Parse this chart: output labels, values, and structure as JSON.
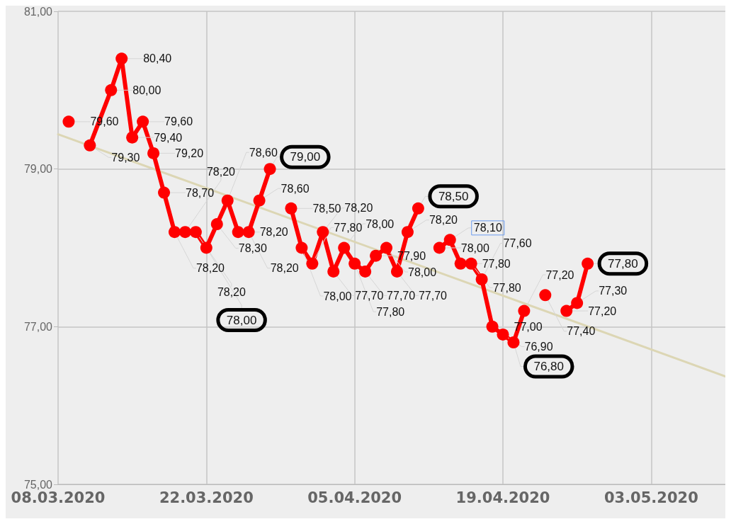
{
  "chart_data": {
    "type": "line",
    "x": [
      "2020-03-09",
      "2020-03-10",
      "2020-03-11",
      "2020-03-13",
      "2020-03-14",
      "2020-03-15",
      "2020-03-16",
      "2020-03-17",
      "2020-03-18",
      "2020-03-19",
      "2020-03-20",
      "2020-03-21",
      "2020-03-22",
      "2020-03-23",
      "2020-03-24",
      "2020-03-25",
      "2020-03-26",
      "2020-03-27",
      "2020-03-28",
      "2020-03-29",
      "2020-03-30",
      "2020-03-31",
      "2020-04-01",
      "2020-04-02",
      "2020-04-03",
      "2020-04-04",
      "2020-04-05",
      "2020-04-06",
      "2020-04-07",
      "2020-04-08",
      "2020-04-09",
      "2020-04-10",
      "2020-04-11",
      "2020-04-12",
      "2020-04-13",
      "2020-04-14",
      "2020-04-15",
      "2020-04-16",
      "2020-04-17",
      "2020-04-18",
      "2020-04-19",
      "2020-04-20",
      "2020-04-21",
      "2020-04-22",
      "2020-04-23",
      "2020-04-24",
      "2020-04-25",
      "2020-04-26",
      "2020-04-27"
    ],
    "series": [
      {
        "color": "#ff0000",
        "values": [
          79.6,
          null,
          79.3,
          80.0,
          80.4,
          79.4,
          79.6,
          79.2,
          78.7,
          78.2,
          78.2,
          78.2,
          78.0,
          78.3,
          78.6,
          78.2,
          78.2,
          78.6,
          79.0,
          null,
          78.5,
          78.0,
          77.8,
          78.2,
          77.7,
          78.0,
          77.8,
          77.7,
          77.9,
          78.0,
          77.7,
          78.2,
          78.5,
          null,
          78.0,
          78.1,
          77.8,
          77.8,
          77.6,
          77.0,
          76.9,
          76.8,
          77.2,
          null,
          77.4,
          null,
          77.2,
          77.3,
          77.8
        ],
        "value_labels": [
          "79,60",
          null,
          "79,30",
          "80,00",
          "80,40",
          "79,40",
          "79,60",
          "79,20",
          "78,70",
          "78,20",
          "78,20",
          "78,20",
          "78,00",
          "78,30",
          "78,60",
          "78,20",
          "78,20",
          "78,60",
          "79,00",
          null,
          "78,50",
          "78,00",
          "77,80",
          "78,20",
          "77,70",
          "78,00",
          "77,80",
          "77,70",
          "77,90",
          "78,00",
          "77,70",
          "78,20",
          "78,50",
          null,
          "78,00",
          "78,10",
          "77,80",
          "77,80",
          "77,60",
          "77,00",
          "76,90",
          "76,80",
          "77,20",
          null,
          "77,40",
          null,
          "77,20",
          "77,30",
          "77,80"
        ]
      },
      {
        "color": "#dcd6b4",
        "x": [
          "2020-03-08",
          "2020-05-10"
        ],
        "values": [
          79.44,
          76.37
        ],
        "marker": "none"
      }
    ],
    "xlim": [
      "2020-03-08",
      "2020-05-10"
    ],
    "xticks": [
      {
        "value": "2020-03-08",
        "label": "08.03.2020"
      },
      {
        "value": "2020-03-22",
        "label": "22.03.2020"
      },
      {
        "value": "2020-04-05",
        "label": "05.04.2020"
      },
      {
        "value": "2020-04-19",
        "label": "19.04.2020"
      },
      {
        "value": "2020-05-03",
        "label": "03.05.2020"
      }
    ],
    "ylim": [
      75,
      81
    ],
    "yticks": [
      {
        "value": 75,
        "label": "75,00"
      },
      {
        "value": 77,
        "label": "77,00"
      },
      {
        "value": 79,
        "label": "79,00"
      },
      {
        "value": 81,
        "label": "81,00"
      }
    ],
    "grid": true,
    "marker": "circle",
    "line_style": "solid"
  }
}
